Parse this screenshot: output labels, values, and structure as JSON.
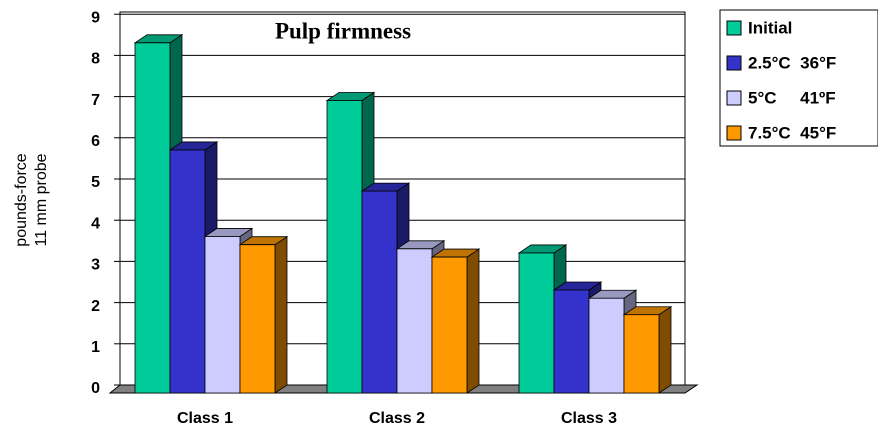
{
  "chart_data": {
    "type": "bar3d",
    "title": "Pulp firmness",
    "y_label": [
      "pounds-force",
      "11 mm probe"
    ],
    "categories": [
      "Class 1",
      "Class 2",
      "Class 3"
    ],
    "series": [
      {
        "name": "Initial",
        "color": "#00cc99",
        "values": [
          8.5,
          7.1,
          3.4
        ]
      },
      {
        "name": "2.5°C  36°F",
        "color": "#3333cc",
        "values": [
          5.9,
          4.9,
          2.5
        ]
      },
      {
        "name": "5°C     41ºF",
        "color": "#ccccff",
        "values": [
          3.8,
          3.5,
          2.3
        ]
      },
      {
        "name": "7.5°C  45°F",
        "color": "#ff9900",
        "values": [
          3.6,
          3.3,
          1.9
        ]
      }
    ],
    "ylim": [
      0,
      9
    ],
    "yticks": [
      0,
      1,
      2,
      3,
      4,
      5,
      6,
      7,
      8,
      9
    ],
    "grid": true,
    "legend": "right"
  }
}
